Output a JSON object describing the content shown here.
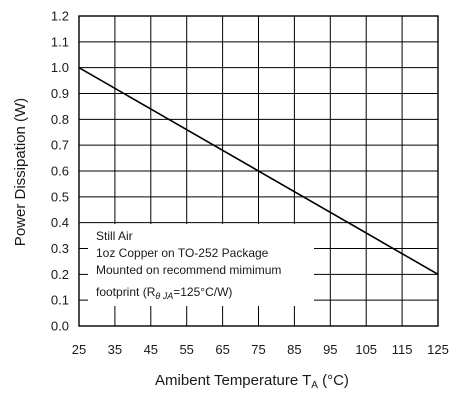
{
  "chart_data": {
    "type": "line",
    "title": "",
    "xlabel": "Amibent Temperature",
    "xlabel_symbol": "T",
    "xlabel_subscript": "A",
    "xlabel_unit": " (°C)",
    "ylabel": "Power Dissipation (W)",
    "xlim": [
      25,
      125
    ],
    "ylim": [
      0.0,
      1.2
    ],
    "x_ticks": [
      "25",
      "35",
      "45",
      "55",
      "65",
      "75",
      "85",
      "95",
      "105",
      "115",
      "125"
    ],
    "y_ticks": [
      "0.0",
      "0.1",
      "0.2",
      "0.3",
      "0.4",
      "0.5",
      "0.6",
      "0.7",
      "0.8",
      "0.9",
      "1.0",
      "1.1",
      "1.2"
    ],
    "grid": true,
    "series": [
      {
        "x": [
          25,
          125
        ],
        "y": [
          1.0,
          0.2
        ]
      }
    ],
    "annotation": {
      "line1": "Still Air",
      "line2": "1oz Copper on TO-252 Package",
      "line3": "Mounted on recommend mimimum",
      "line4_prefix": " footprint (R",
      "line4_sub": "θ JA",
      "line4_suffix": "=125°C/W)"
    },
    "colors": {
      "line": "#000000",
      "grid": "#000000",
      "text": "#1a1a1a"
    }
  }
}
